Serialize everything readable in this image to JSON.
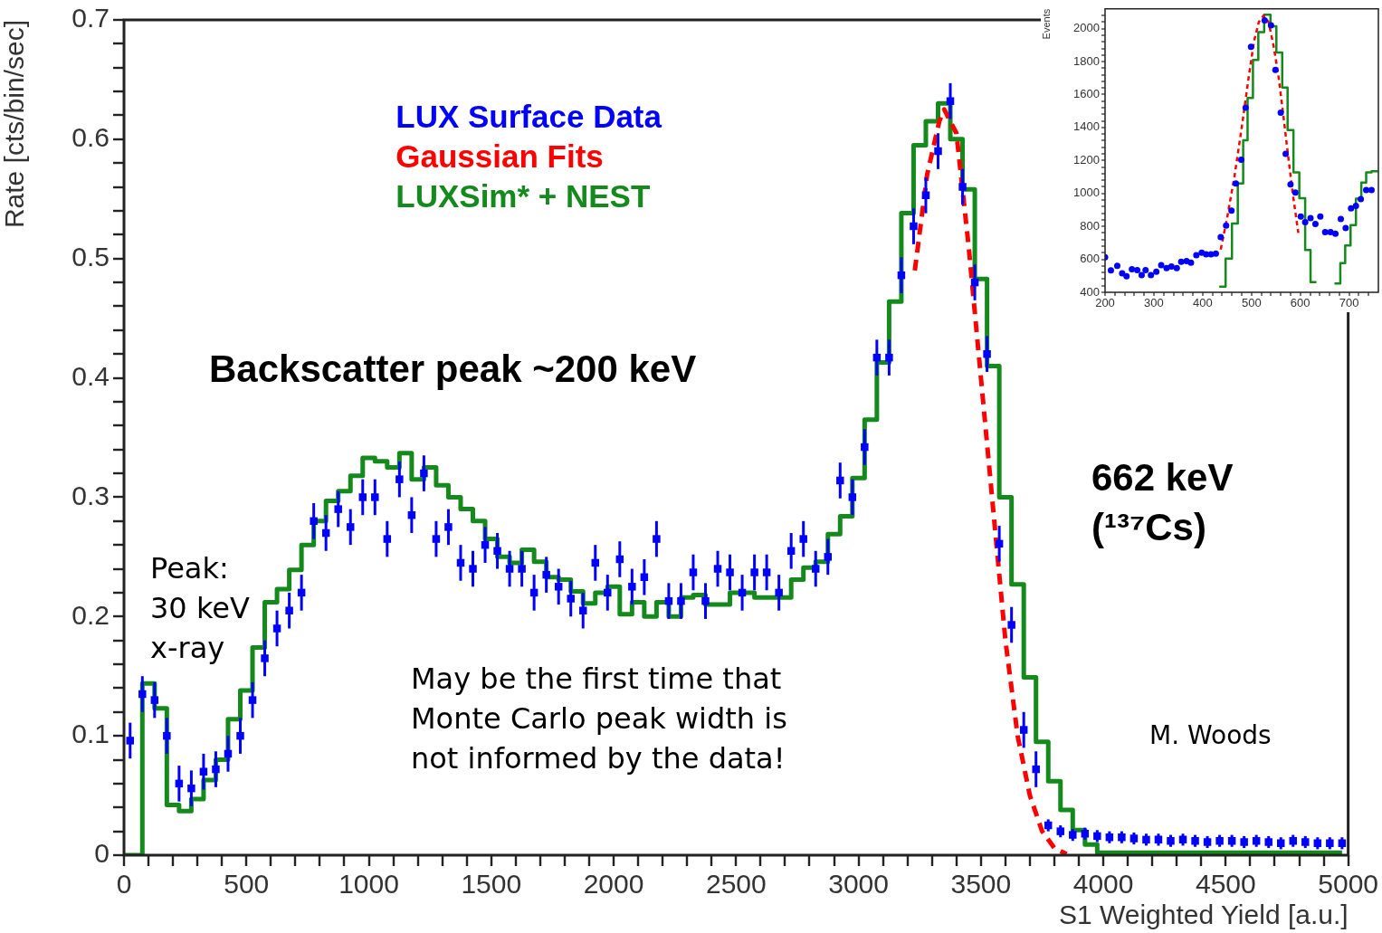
{
  "chart_data": [
    {
      "type": "scatter",
      "xlabel": "S1 Weighted Yield [a.u.]",
      "ylabel": "Rate [cts/bin/sec]",
      "xlim": [
        0,
        5000
      ],
      "ylim": [
        0,
        0.7
      ],
      "xticks": [
        0,
        {
          "value": 100,
          "label": null
        },
        {
          "value": 200,
          "label": null
        },
        {
          "value": 300,
          "label": null
        },
        {
          "value": 400,
          "label": null
        },
        500,
        {
          "value": 600,
          "label": null
        },
        {
          "value": 700,
          "label": null
        },
        {
          "value": 800,
          "label": null
        },
        {
          "value": 900,
          "label": null
        },
        1000,
        {
          "value": 1100,
          "label": null
        },
        {
          "value": 1200,
          "label": null
        },
        {
          "value": 1300,
          "label": null
        },
        {
          "value": 1400,
          "label": null
        },
        1500,
        {
          "value": 1600,
          "label": null
        },
        {
          "value": 1700,
          "label": null
        },
        {
          "value": 1800,
          "label": null
        },
        {
          "value": 1900,
          "label": null
        },
        2000,
        {
          "value": 2100,
          "label": null
        },
        {
          "value": 2200,
          "label": null
        },
        {
          "value": 2300,
          "label": null
        },
        {
          "value": 2400,
          "label": null
        },
        2500,
        {
          "value": 2600,
          "label": null
        },
        {
          "value": 2700,
          "label": null
        },
        {
          "value": 2800,
          "label": null
        },
        {
          "value": 2900,
          "label": null
        },
        3000,
        {
          "value": 3100,
          "label": null
        },
        {
          "value": 3200,
          "label": null
        },
        {
          "value": 3300,
          "label": null
        },
        {
          "value": 3400,
          "label": null
        },
        3500,
        {
          "value": 3600,
          "label": null
        },
        {
          "value": 3700,
          "label": null
        },
        {
          "value": 3800,
          "label": null
        },
        {
          "value": 3900,
          "label": null
        },
        4000,
        {
          "value": 4100,
          "label": null
        },
        {
          "value": 4200,
          "label": null
        },
        {
          "value": 4300,
          "label": null
        },
        {
          "value": 4400,
          "label": null
        },
        4500,
        {
          "value": 4600,
          "label": null
        },
        {
          "value": 4700,
          "label": null
        },
        {
          "value": 4800,
          "label": null
        },
        {
          "value": 4900,
          "label": null
        },
        5000
      ],
      "yticks": [
        0,
        {
          "value": 0.02,
          "label": null
        },
        {
          "value": 0.04,
          "label": null
        },
        {
          "value": 0.06,
          "label": null
        },
        {
          "value": 0.08,
          "label": null
        },
        0.1,
        {
          "value": 0.12,
          "label": null
        },
        {
          "value": 0.14,
          "label": null
        },
        {
          "value": 0.16,
          "label": null
        },
        {
          "value": 0.18,
          "label": null
        },
        0.2,
        {
          "value": 0.22,
          "label": null
        },
        {
          "value": 0.24,
          "label": null
        },
        {
          "value": 0.26,
          "label": null
        },
        {
          "value": 0.28,
          "label": null
        },
        0.3,
        {
          "value": 0.32,
          "label": null
        },
        {
          "value": 0.34,
          "label": null
        },
        {
          "value": 0.36,
          "label": null
        },
        {
          "value": 0.38,
          "label": null
        },
        0.4,
        {
          "value": 0.42,
          "label": null
        },
        {
          "value": 0.44,
          "label": null
        },
        {
          "value": 0.46,
          "label": null
        },
        {
          "value": 0.48,
          "label": null
        },
        0.5,
        {
          "value": 0.52,
          "label": null
        },
        {
          "value": 0.54,
          "label": null
        },
        {
          "value": 0.56,
          "label": null
        },
        {
          "value": 0.58,
          "label": null
        },
        0.6,
        {
          "value": 0.62,
          "label": null
        },
        {
          "value": 0.64,
          "label": null
        },
        {
          "value": 0.66,
          "label": null
        },
        {
          "value": 0.68,
          "label": null
        },
        0.7
      ],
      "legend": "top left",
      "annotations": [
        "Backscatter peak ~200 keV",
        "Peak:\n30 keV\nx-ray",
        "May be the first time that\nMonte Carlo peak width is\nnot informed by the data!",
        "662 keV\n(¹³⁷Cs)",
        "M. Woods"
      ],
      "series": [
        {
          "name": "LUXSim* + NEST",
          "type": "step",
          "color": "#138a1b",
          "x": [
            0,
            75,
            125,
            175,
            225,
            275,
            325,
            375,
            425,
            475,
            525,
            575,
            625,
            675,
            725,
            775,
            825,
            875,
            925,
            975,
            1025,
            1075,
            1125,
            1175,
            1225,
            1275,
            1325,
            1375,
            1425,
            1475,
            1525,
            1575,
            1625,
            1675,
            1725,
            1775,
            1825,
            1875,
            1925,
            1975,
            2025,
            2075,
            2125,
            2175,
            2225,
            2275,
            2325,
            2375,
            2425,
            2475,
            2525,
            2575,
            2625,
            2675,
            2725,
            2775,
            2825,
            2875,
            2925,
            2975,
            3025,
            3075,
            3125,
            3175,
            3225,
            3275,
            3325,
            3375,
            3425,
            3475,
            3525,
            3575,
            3625,
            3675,
            3725,
            3775,
            3825,
            3875,
            3925,
            3975,
            4025,
            4075,
            4125,
            4175,
            4225,
            4275,
            4325,
            4375,
            4425,
            4475,
            4525,
            4575,
            4625,
            4675,
            4725,
            4775,
            4825,
            4875,
            4925,
            4975
          ],
          "values": [
            0,
            0.144,
            0.123,
            0.042,
            0.037,
            0.047,
            0.063,
            0.08,
            0.114,
            0.138,
            0.174,
            0.212,
            0.223,
            0.239,
            0.26,
            0.28,
            0.297,
            0.305,
            0.318,
            0.333,
            0.33,
            0.325,
            0.337,
            0.315,
            0.325,
            0.31,
            0.3,
            0.29,
            0.28,
            0.265,
            0.25,
            0.245,
            0.256,
            0.246,
            0.233,
            0.231,
            0.221,
            0.211,
            0.22,
            0.225,
            0.202,
            0.212,
            0.2,
            0.212,
            0.2,
            0.216,
            0.218,
            0.21,
            0.21,
            0.22,
            0.22,
            0.216,
            0.216,
            0.216,
            0.231,
            0.241,
            0.246,
            0.269,
            0.284,
            0.316,
            0.365,
            0.413,
            0.464,
            0.538,
            0.595,
            0.615,
            0.63,
            0.6,
            0.558,
            0.483,
            0.41,
            0.3,
            0.227,
            0.149,
            0.095,
            0.062,
            0.038,
            0.021,
            0.009,
            0.002,
            0.002,
            0.002,
            0.002,
            0.002,
            0.002,
            0.002,
            0.002,
            0.002,
            0.002,
            0.002,
            0.002,
            0.002,
            0.002,
            0.002,
            0.002,
            0.002,
            0.002,
            0.002,
            0.002,
            0.002
          ]
        },
        {
          "name": "Gaussian Fits",
          "type": "line",
          "line_style": "dashed",
          "color": "#ff0000",
          "x": [
            3230,
            3280,
            3330,
            3350,
            3400,
            3450,
            3500,
            3550,
            3600,
            3650,
            3700,
            3750,
            3800,
            3850
          ],
          "values": [
            0.49,
            0.57,
            0.615,
            0.625,
            0.605,
            0.51,
            0.4,
            0.29,
            0.18,
            0.1,
            0.05,
            0.02,
            0.006,
            0.001
          ]
        },
        {
          "name": "LUX Surface Data",
          "type": "scatter",
          "marker": "square",
          "color": "#0000ff",
          "x": [
            25,
            75,
            125,
            175,
            225,
            275,
            325,
            375,
            425,
            475,
            525,
            575,
            625,
            675,
            725,
            775,
            825,
            875,
            925,
            975,
            1025,
            1075,
            1125,
            1175,
            1225,
            1275,
            1325,
            1375,
            1425,
            1475,
            1525,
            1575,
            1625,
            1675,
            1725,
            1775,
            1825,
            1875,
            1925,
            1975,
            2025,
            2075,
            2125,
            2175,
            2225,
            2275,
            2325,
            2375,
            2425,
            2475,
            2525,
            2575,
            2625,
            2675,
            2725,
            2775,
            2825,
            2875,
            2925,
            2975,
            3025,
            3075,
            3125,
            3175,
            3225,
            3275,
            3325,
            3375,
            3425,
            3475,
            3525,
            3575,
            3625,
            3675,
            3725,
            3775,
            3825,
            3875,
            3925,
            3975,
            4025,
            4075,
            4125,
            4175,
            4225,
            4275,
            4325,
            4375,
            4425,
            4475,
            4525,
            4575,
            4625,
            4675,
            4725,
            4775,
            4825,
            4875,
            4925,
            4975
          ],
          "values": [
            0.096,
            0.135,
            0.13,
            0.1,
            0.06,
            0.056,
            0.07,
            0.072,
            0.085,
            0.1,
            0.13,
            0.165,
            0.19,
            0.205,
            0.22,
            0.28,
            0.27,
            0.29,
            0.275,
            0.3,
            0.3,
            0.265,
            0.315,
            0.285,
            0.32,
            0.265,
            0.275,
            0.245,
            0.24,
            0.26,
            0.255,
            0.24,
            0.24,
            0.22,
            0.235,
            0.225,
            0.215,
            0.205,
            0.245,
            0.22,
            0.248,
            0.225,
            0.233,
            0.265,
            0.213,
            0.213,
            0.237,
            0.213,
            0.24,
            0.237,
            0.22,
            0.237,
            0.237,
            0.22,
            0.255,
            0.265,
            0.24,
            0.25,
            0.314,
            0.3,
            0.342,
            0.417,
            0.417,
            0.486,
            0.527,
            0.553,
            0.59,
            0.632,
            0.56,
            0.48,
            0.42,
            0.261,
            0.193,
            0.105,
            0.072,
            0.025,
            0.02,
            0.017,
            0.018,
            0.016,
            0.015,
            0.015,
            0.014,
            0.013,
            0.013,
            0.012,
            0.013,
            0.012,
            0.011,
            0.012,
            0.012,
            0.011,
            0.012,
            0.011,
            0.01,
            0.012,
            0.011,
            0.01,
            0.01,
            0.01
          ],
          "errors": [
            0.015,
            0.015,
            0.015,
            0.015,
            0.015,
            0.015,
            0.015,
            0.015,
            0.015,
            0.015,
            0.015,
            0.015,
            0.015,
            0.015,
            0.015,
            0.015,
            0.015,
            0.015,
            0.015,
            0.015,
            0.015,
            0.015,
            0.015,
            0.015,
            0.015,
            0.015,
            0.015,
            0.015,
            0.015,
            0.015,
            0.015,
            0.015,
            0.015,
            0.015,
            0.015,
            0.015,
            0.015,
            0.015,
            0.015,
            0.015,
            0.015,
            0.015,
            0.015,
            0.015,
            0.015,
            0.015,
            0.015,
            0.015,
            0.015,
            0.015,
            0.015,
            0.015,
            0.015,
            0.015,
            0.015,
            0.015,
            0.015,
            0.015,
            0.015,
            0.015,
            0.015,
            0.015,
            0.015,
            0.015,
            0.015,
            0.015,
            0.015,
            0.015,
            0.015,
            0.015,
            0.015,
            0.015,
            0.015,
            0.015,
            0.015,
            0.005,
            0.005,
            0.005,
            0.005,
            0.005,
            0.005,
            0.005,
            0.005,
            0.005,
            0.005,
            0.005,
            0.005,
            0.005,
            0.005,
            0.005,
            0.005,
            0.005,
            0.005,
            0.005,
            0.005,
            0.005,
            0.005,
            0.005,
            0.005,
            0.005
          ]
        }
      ]
    },
    {
      "type": "scatter",
      "ylabel": "Events",
      "xlim": [
        200,
        760
      ],
      "ylim": [
        400,
        2120
      ],
      "xticks": [
        200,
        {
          "value": 220,
          "label": null
        },
        {
          "value": 240,
          "label": null
        },
        {
          "value": 260,
          "label": null
        },
        {
          "value": 280,
          "label": null
        },
        300,
        {
          "value": 320,
          "label": null
        },
        {
          "value": 340,
          "label": null
        },
        {
          "value": 360,
          "label": null
        },
        {
          "value": 380,
          "label": null
        },
        400,
        {
          "value": 420,
          "label": null
        },
        {
          "value": 440,
          "label": null
        },
        {
          "value": 460,
          "label": null
        },
        {
          "value": 480,
          "label": null
        },
        500,
        {
          "value": 520,
          "label": null
        },
        {
          "value": 540,
          "label": null
        },
        {
          "value": 560,
          "label": null
        },
        {
          "value": 580,
          "label": null
        },
        600,
        {
          "value": 620,
          "label": null
        },
        {
          "value": 640,
          "label": null
        },
        {
          "value": 660,
          "label": null
        },
        {
          "value": 680,
          "label": null
        },
        700,
        {
          "value": 720,
          "label": null
        },
        {
          "value": 740,
          "label": null
        }
      ],
      "yticks": [
        400,
        {
          "value": 440,
          "label": null
        },
        {
          "value": 480,
          "label": null
        },
        {
          "value": 520,
          "label": null
        },
        {
          "value": 560,
          "label": null
        },
        600,
        {
          "value": 640,
          "label": null
        },
        {
          "value": 680,
          "label": null
        },
        {
          "value": 720,
          "label": null
        },
        {
          "value": 760,
          "label": null
        },
        800,
        {
          "value": 840,
          "label": null
        },
        {
          "value": 880,
          "label": null
        },
        {
          "value": 920,
          "label": null
        },
        {
          "value": 960,
          "label": null
        },
        1000,
        {
          "value": 1040,
          "label": null
        },
        {
          "value": 1080,
          "label": null
        },
        {
          "value": 1120,
          "label": null
        },
        {
          "value": 1160,
          "label": null
        },
        1200,
        {
          "value": 1240,
          "label": null
        },
        {
          "value": 1280,
          "label": null
        },
        {
          "value": 1320,
          "label": null
        },
        {
          "value": 1360,
          "label": null
        },
        1400,
        {
          "value": 1440,
          "label": null
        },
        {
          "value": 1480,
          "label": null
        },
        {
          "value": 1520,
          "label": null
        },
        {
          "value": 1560,
          "label": null
        },
        1600,
        {
          "value": 1640,
          "label": null
        },
        {
          "value": 1680,
          "label": null
        },
        {
          "value": 1720,
          "label": null
        },
        {
          "value": 1760,
          "label": null
        },
        1800,
        {
          "value": 1840,
          "label": null
        },
        {
          "value": 1880,
          "label": null
        },
        {
          "value": 1920,
          "label": null
        },
        {
          "value": 1960,
          "label": null
        },
        2000,
        {
          "value": 2040,
          "label": null
        },
        {
          "value": 2080,
          "label": null
        }
      ],
      "series": [
        {
          "type": "step",
          "color": "#138a1b",
          "x": [
            434,
            447,
            460,
            472,
            483,
            492,
            503,
            514,
            526,
            539,
            551,
            563,
            574,
            586,
            598,
            610,
            621,
            633,
            634,
            670,
            682,
            692,
            703,
            714,
            725,
            735,
            746,
            759
          ],
          "values": [
            435,
            604,
            817,
            1060,
            1322,
            1580,
            1810,
            1979,
            2085,
            2014,
            1855,
            1642,
            1385,
            1127,
            971,
            657,
            462,
            462,
            null,
            453,
            577,
            684,
            808,
            968,
            1066,
            1127,
            1135,
            1135
          ]
        },
        {
          "type": "line",
          "line_style": "dashed",
          "color": "#ff0000",
          "x": [
            437,
            450,
            465,
            480,
            495,
            505,
            515,
            525,
            535,
            545,
            555,
            565,
            575,
            585,
            596
          ],
          "values": [
            660,
            850,
            1100,
            1400,
            1720,
            1920,
            2040,
            2080,
            2040,
            1900,
            1720,
            1480,
            1230,
            990,
            760
          ]
        },
        {
          "type": "scatter",
          "marker": "circle",
          "color": "#0000ff",
          "x": [
            200,
            212,
            225,
            235,
            244,
            255,
            266,
            275,
            283,
            294,
            305,
            315,
            326,
            336,
            347,
            356,
            367,
            376,
            387,
            398,
            407,
            417,
            427,
            437,
            448,
            459,
            468,
            479,
            488,
            499,
            527,
            540,
            549,
            560,
            570,
            580,
            590,
            601,
            610,
            621,
            631,
            641,
            651,
            662,
            672,
            683,
            693,
            704,
            714,
            724,
            735,
            746
          ],
          "values": [
            613,
            533,
            560,
            515,
            497,
            540,
            535,
            505,
            535,
            505,
            525,
            565,
            547,
            557,
            547,
            585,
            590,
            580,
            625,
            640,
            630,
            630,
            635,
            735,
            805,
            895,
            1060,
            1205,
            1520,
            1890,
            2050,
            2020,
            1750,
            1490,
            1240,
            1055,
            1005,
            860,
            825,
            850,
            815,
            860,
            765,
            765,
            755,
            845,
            790,
            910,
            925,
            965,
            1020,
            1020
          ]
        }
      ]
    }
  ]
}
